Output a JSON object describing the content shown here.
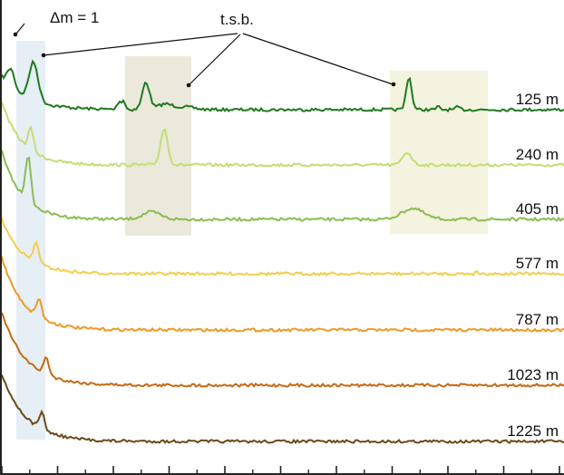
{
  "chart_data": {
    "type": "line",
    "title": "",
    "xlabel": "",
    "ylabel": "",
    "grid": false,
    "legend": "none",
    "x_ticks_major_count": 11,
    "series": [
      {
        "name": "125 m",
        "color": "#1e7a1e",
        "baseline": 121,
        "decay": 28,
        "decay_amp": 36,
        "peaks": [
          [
            12,
            20,
            4
          ],
          [
            37,
            42,
            5
          ],
          [
            131,
            8,
            2
          ],
          [
            136,
            10,
            2
          ],
          [
            161,
            30,
            4
          ],
          [
            182,
            6,
            8
          ],
          [
            204,
            3,
            10
          ],
          [
            451,
            36,
            3
          ],
          [
            483,
            3,
            2
          ],
          [
            505,
            3,
            2
          ]
        ]
      },
      {
        "name": "240 m",
        "color": "#c2df72",
        "baseline": 182,
        "decay": 22,
        "decay_amp": 70,
        "peaks": [
          [
            34,
            24,
            3
          ],
          [
            181,
            40,
            4
          ],
          [
            449,
            14,
            5
          ]
        ]
      },
      {
        "name": "405 m",
        "color": "#8cbc52",
        "baseline": 242,
        "decay": 22,
        "decay_amp": 75,
        "peaks": [
          [
            31,
            50,
            3
          ],
          [
            167,
            8,
            10
          ],
          [
            455,
            12,
            12
          ]
        ]
      },
      {
        "name": "577 m",
        "color": "#f3ce4e",
        "baseline": 302,
        "decay": 24,
        "decay_amp": 60,
        "peaks": [
          [
            40,
            22,
            3
          ],
          [
            526,
            4,
            1
          ]
        ]
      },
      {
        "name": "787 m",
        "color": "#ef9a25",
        "baseline": 364,
        "decay": 24,
        "decay_amp": 80,
        "peaks": [
          [
            43,
            20,
            3
          ]
        ]
      },
      {
        "name": "1023 m",
        "color": "#c76a13",
        "baseline": 425,
        "decay": 26,
        "decay_amp": 80,
        "peaks": [
          [
            51,
            18,
            3
          ]
        ]
      },
      {
        "name": "1225 m",
        "color": "#6b4a17",
        "baseline": 487,
        "decay": 26,
        "decay_amp": 75,
        "peaks": [
          [
            46,
            18,
            3
          ]
        ]
      }
    ],
    "annotations": [
      {
        "text": "Δm = 1"
      },
      {
        "text": "t.s.b."
      }
    ]
  }
}
